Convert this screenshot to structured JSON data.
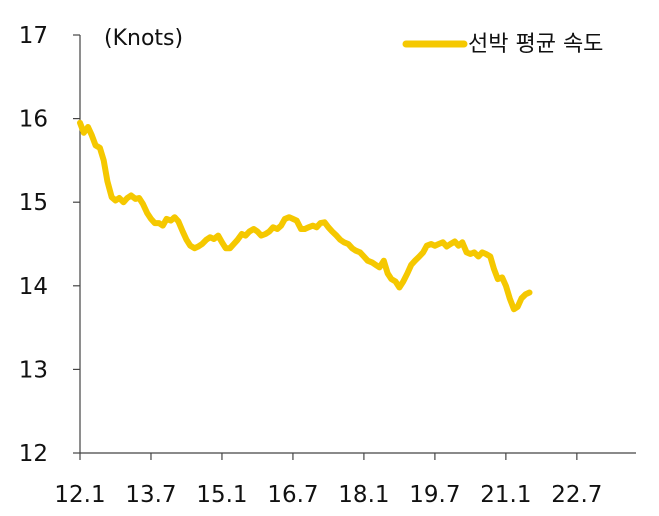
{
  "chart_data": {
    "type": "line",
    "title": "",
    "xlabel": "",
    "ylabel": "(Knots)",
    "ylim": [
      12,
      17
    ],
    "yticks": [
      12,
      13,
      14,
      15,
      16,
      17
    ],
    "xlim": [
      2012.0,
      2023.75
    ],
    "xticks": [
      {
        "label": "12.1",
        "value": 2012.0
      },
      {
        "label": "13.7",
        "value": 2013.5
      },
      {
        "label": "15.1",
        "value": 2015.0
      },
      {
        "label": "16.7",
        "value": 2016.5
      },
      {
        "label": "18.1",
        "value": 2018.0
      },
      {
        "label": "19.7",
        "value": 2019.5
      },
      {
        "label": "21.1",
        "value": 2021.0
      },
      {
        "label": "22.7",
        "value": 2022.5
      }
    ],
    "grid": false,
    "legend": "top-right",
    "series": [
      {
        "name": "선박 평균 속도",
        "color": "#F5C800",
        "points": [
          [
            2012.0,
            15.95
          ],
          [
            2012.08,
            15.83
          ],
          [
            2012.17,
            15.9
          ],
          [
            2012.25,
            15.8
          ],
          [
            2012.33,
            15.68
          ],
          [
            2012.42,
            15.65
          ],
          [
            2012.5,
            15.5
          ],
          [
            2012.58,
            15.25
          ],
          [
            2012.67,
            15.06
          ],
          [
            2012.75,
            15.02
          ],
          [
            2012.83,
            15.05
          ],
          [
            2012.92,
            15.0
          ],
          [
            2013.0,
            15.05
          ],
          [
            2013.08,
            15.08
          ],
          [
            2013.17,
            15.04
          ],
          [
            2013.25,
            15.05
          ],
          [
            2013.33,
            14.98
          ],
          [
            2013.42,
            14.87
          ],
          [
            2013.5,
            14.8
          ],
          [
            2013.58,
            14.75
          ],
          [
            2013.67,
            14.75
          ],
          [
            2013.75,
            14.72
          ],
          [
            2013.83,
            14.8
          ],
          [
            2013.92,
            14.78
          ],
          [
            2014.0,
            14.82
          ],
          [
            2014.08,
            14.77
          ],
          [
            2014.17,
            14.65
          ],
          [
            2014.25,
            14.55
          ],
          [
            2014.33,
            14.48
          ],
          [
            2014.42,
            14.45
          ],
          [
            2014.5,
            14.47
          ],
          [
            2014.58,
            14.5
          ],
          [
            2014.67,
            14.55
          ],
          [
            2014.75,
            14.58
          ],
          [
            2014.83,
            14.56
          ],
          [
            2014.92,
            14.6
          ],
          [
            2015.0,
            14.52
          ],
          [
            2015.08,
            14.45
          ],
          [
            2015.17,
            14.45
          ],
          [
            2015.25,
            14.5
          ],
          [
            2015.33,
            14.55
          ],
          [
            2015.42,
            14.62
          ],
          [
            2015.5,
            14.6
          ],
          [
            2015.58,
            14.65
          ],
          [
            2015.67,
            14.68
          ],
          [
            2015.75,
            14.65
          ],
          [
            2015.83,
            14.6
          ],
          [
            2015.92,
            14.62
          ],
          [
            2016.0,
            14.65
          ],
          [
            2016.08,
            14.7
          ],
          [
            2016.17,
            14.68
          ],
          [
            2016.25,
            14.72
          ],
          [
            2016.33,
            14.8
          ],
          [
            2016.42,
            14.82
          ],
          [
            2016.5,
            14.8
          ],
          [
            2016.58,
            14.78
          ],
          [
            2016.67,
            14.68
          ],
          [
            2016.75,
            14.68
          ],
          [
            2016.83,
            14.7
          ],
          [
            2016.92,
            14.72
          ],
          [
            2017.0,
            14.7
          ],
          [
            2017.08,
            14.75
          ],
          [
            2017.17,
            14.76
          ],
          [
            2017.25,
            14.7
          ],
          [
            2017.33,
            14.65
          ],
          [
            2017.42,
            14.6
          ],
          [
            2017.5,
            14.55
          ],
          [
            2017.58,
            14.52
          ],
          [
            2017.67,
            14.5
          ],
          [
            2017.75,
            14.45
          ],
          [
            2017.83,
            14.42
          ],
          [
            2017.92,
            14.4
          ],
          [
            2018.0,
            14.35
          ],
          [
            2018.08,
            14.3
          ],
          [
            2018.17,
            14.28
          ],
          [
            2018.25,
            14.25
          ],
          [
            2018.33,
            14.22
          ],
          [
            2018.42,
            14.3
          ],
          [
            2018.5,
            14.15
          ],
          [
            2018.58,
            14.08
          ],
          [
            2018.67,
            14.05
          ],
          [
            2018.75,
            13.98
          ],
          [
            2018.83,
            14.05
          ],
          [
            2018.92,
            14.15
          ],
          [
            2019.0,
            14.25
          ],
          [
            2019.08,
            14.3
          ],
          [
            2019.17,
            14.35
          ],
          [
            2019.25,
            14.4
          ],
          [
            2019.33,
            14.48
          ],
          [
            2019.42,
            14.5
          ],
          [
            2019.5,
            14.48
          ],
          [
            2019.58,
            14.5
          ],
          [
            2019.67,
            14.52
          ],
          [
            2019.75,
            14.47
          ],
          [
            2019.83,
            14.5
          ],
          [
            2019.92,
            14.53
          ],
          [
            2020.0,
            14.48
          ],
          [
            2020.08,
            14.52
          ],
          [
            2020.17,
            14.4
          ],
          [
            2020.25,
            14.38
          ],
          [
            2020.33,
            14.4
          ],
          [
            2020.42,
            14.35
          ],
          [
            2020.5,
            14.4
          ],
          [
            2020.58,
            14.38
          ],
          [
            2020.67,
            14.35
          ],
          [
            2020.75,
            14.2
          ],
          [
            2020.83,
            14.08
          ],
          [
            2020.92,
            14.1
          ],
          [
            2021.0,
            14.0
          ],
          [
            2021.08,
            13.85
          ],
          [
            2021.17,
            13.72
          ],
          [
            2021.25,
            13.75
          ],
          [
            2021.33,
            13.85
          ],
          [
            2021.42,
            13.9
          ],
          [
            2021.5,
            13.92
          ]
        ]
      }
    ]
  }
}
